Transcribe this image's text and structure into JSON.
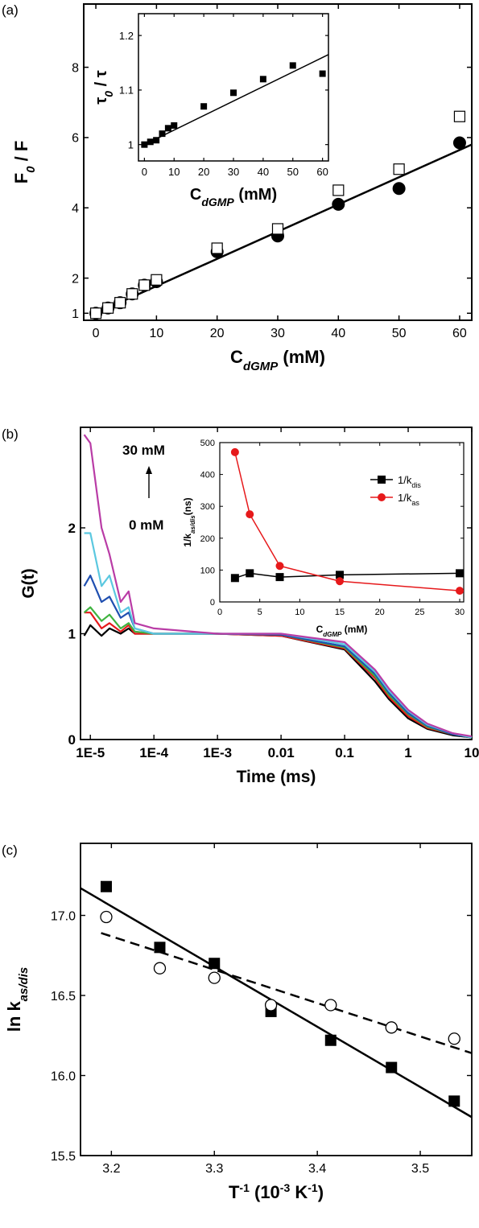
{
  "panels": {
    "a": {
      "label": "(a)"
    },
    "b": {
      "label": "(b)"
    },
    "c": {
      "label": "(c)"
    }
  },
  "chart_data": [
    {
      "id": "a-main",
      "type": "scatter",
      "ylabel": {
        "base": "F",
        "sub": "0",
        "rest": " / F"
      },
      "xlabel": {
        "base": "C",
        "sub": "dGMP",
        "rest": " (mM)"
      },
      "xlim": [
        -2,
        62
      ],
      "ylim": [
        0.8,
        9.8
      ],
      "xticks": [
        0,
        10,
        20,
        30,
        40,
        50,
        60
      ],
      "yticks": [
        1,
        2,
        4,
        6,
        8
      ],
      "series": [
        {
          "marker": "filled-circle",
          "x": [
            0,
            2,
            4,
            6,
            8,
            10,
            20,
            30,
            40,
            50,
            60
          ],
          "y": [
            1.0,
            1.15,
            1.3,
            1.55,
            1.8,
            1.9,
            2.75,
            3.2,
            4.1,
            4.55,
            5.85
          ]
        },
        {
          "marker": "open-square",
          "x": [
            0,
            2,
            4,
            6,
            8,
            10,
            20,
            30,
            40,
            50,
            60
          ],
          "y": [
            1.0,
            1.15,
            1.3,
            1.55,
            1.8,
            1.95,
            2.85,
            3.4,
            4.5,
            5.1,
            6.6
          ]
        },
        {
          "marker": "line",
          "x": [
            0,
            62
          ],
          "y": [
            1.0,
            5.8
          ]
        }
      ],
      "inset": {
        "id": "a-inset",
        "type": "scatter",
        "ylabel": {
          "base": "τ",
          "sub": "0",
          "rest": " / τ"
        },
        "xlabel": {
          "base": "C",
          "sub": "dGMP",
          "rest": " (mM)"
        },
        "xlim": [
          -2,
          62
        ],
        "ylim": [
          0.97,
          1.24
        ],
        "xticks": [
          0,
          10,
          20,
          30,
          40,
          50,
          60
        ],
        "yticks": [
          1,
          1.1,
          1.2
        ],
        "ytick_labels": [
          "1",
          "1.1",
          "1.2"
        ],
        "series": [
          {
            "marker": "filled-square",
            "x": [
              0,
              2,
              4,
              6,
              8,
              10,
              20,
              30,
              40,
              50,
              60
            ],
            "y": [
              1.0,
              1.005,
              1.008,
              1.02,
              1.03,
              1.035,
              1.07,
              1.095,
              1.12,
              1.145,
              1.13
            ]
          },
          {
            "marker": "line",
            "x": [
              0,
              62
            ],
            "y": [
              1.0,
              1.165
            ]
          }
        ]
      }
    },
    {
      "id": "b-main",
      "type": "line",
      "ylabel": "G(t)",
      "xlabel": "Time (ms)",
      "xscale": "log",
      "xlim": [
        7e-06,
        10
      ],
      "ylim": [
        0,
        2.95
      ],
      "xticks": [
        1e-05,
        0.0001,
        0.001,
        0.01,
        0.1,
        1,
        10
      ],
      "xtick_labels": [
        "1E-5",
        "1E-4",
        "1E-3",
        "0.01",
        "0.1",
        "1",
        "10"
      ],
      "yticks": [
        0,
        1,
        2
      ],
      "annotations": [
        "30 mM",
        "0 mM"
      ],
      "series": [
        {
          "color": "#000000",
          "x": [
            8e-06,
            1e-05,
            1.5e-05,
            2e-05,
            3e-05,
            4e-05,
            5e-05,
            0.0001,
            0.001,
            0.01,
            0.1,
            0.3,
            0.5,
            1,
            2,
            5,
            10
          ],
          "y": [
            0.98,
            1.08,
            0.98,
            1.05,
            1.0,
            1.05,
            1.0,
            1.0,
            1.0,
            0.98,
            0.85,
            0.55,
            0.38,
            0.2,
            0.1,
            0.04,
            0.02
          ]
        },
        {
          "color": "#e6191b",
          "x": [
            8e-06,
            1e-05,
            1.5e-05,
            2e-05,
            3e-05,
            4e-05,
            5e-05,
            0.0001,
            0.001,
            0.01,
            0.1,
            0.3,
            0.5,
            1,
            2,
            5,
            10
          ],
          "y": [
            1.2,
            1.2,
            1.05,
            1.1,
            1.02,
            1.08,
            1.0,
            1.0,
            1.0,
            0.98,
            0.86,
            0.58,
            0.4,
            0.22,
            0.11,
            0.05,
            0.02
          ]
        },
        {
          "color": "#3fb340",
          "x": [
            8e-06,
            1e-05,
            1.5e-05,
            2e-05,
            3e-05,
            4e-05,
            5e-05,
            0.0001,
            0.001,
            0.01,
            0.1,
            0.3,
            0.5,
            1,
            2,
            5,
            10
          ],
          "y": [
            1.2,
            1.25,
            1.12,
            1.18,
            1.05,
            1.1,
            1.02,
            1.0,
            1.0,
            0.99,
            0.87,
            0.6,
            0.42,
            0.24,
            0.12,
            0.05,
            0.02
          ]
        },
        {
          "color": "#1f4fb0",
          "x": [
            8e-06,
            1e-05,
            1.5e-05,
            2e-05,
            3e-05,
            4e-05,
            5e-05,
            0.0001,
            0.001,
            0.01,
            0.1,
            0.3,
            0.5,
            1,
            2,
            5,
            10
          ],
          "y": [
            1.45,
            1.55,
            1.3,
            1.35,
            1.15,
            1.2,
            1.05,
            1.0,
            1.0,
            0.99,
            0.88,
            0.62,
            0.44,
            0.25,
            0.13,
            0.05,
            0.02
          ]
        },
        {
          "color": "#5bc8e0",
          "x": [
            8e-06,
            1e-05,
            1.5e-05,
            2e-05,
            3e-05,
            4e-05,
            5e-05,
            0.0001,
            0.001,
            0.01,
            0.1,
            0.3,
            0.5,
            1,
            2,
            5,
            10
          ],
          "y": [
            1.95,
            1.95,
            1.45,
            1.55,
            1.2,
            1.25,
            1.05,
            1.0,
            1.0,
            1.0,
            0.9,
            0.64,
            0.46,
            0.27,
            0.14,
            0.06,
            0.02
          ]
        },
        {
          "color": "#b93ca6",
          "x": [
            8e-06,
            1e-05,
            1.5e-05,
            2e-05,
            3e-05,
            4e-05,
            5e-05,
            0.0001,
            0.001,
            0.01,
            0.1,
            0.3,
            0.5,
            1,
            2,
            5,
            10
          ],
          "y": [
            2.88,
            2.8,
            2.0,
            1.75,
            1.3,
            1.4,
            1.1,
            1.05,
            1.0,
            1.0,
            0.92,
            0.66,
            0.48,
            0.28,
            0.15,
            0.06,
            0.03
          ]
        }
      ],
      "inset": {
        "id": "b-inset",
        "type": "line",
        "ylabel": {
          "base": "1/k",
          "sub": "as/dis",
          "rest": "(ns)"
        },
        "xlabel": {
          "base": "C",
          "sub": "dGMP",
          "rest": " (mM)"
        },
        "xlim": [
          0,
          30.5
        ],
        "ylim": [
          0,
          500
        ],
        "xticks": [
          0,
          5,
          10,
          15,
          20,
          25,
          30
        ],
        "yticks": [
          0,
          100,
          200,
          300,
          400,
          500
        ],
        "legend_position": "top-right",
        "series": [
          {
            "name": "1/k",
            "name_sub": "dis",
            "color": "#000000",
            "marker": "square",
            "x": [
              1.9,
              3.75,
              7.5,
              15,
              30
            ],
            "y": [
              75,
              90,
              78,
              85,
              90
            ]
          },
          {
            "name": "1/k",
            "name_sub": "as",
            "color": "#e6191b",
            "marker": "circle",
            "x": [
              1.9,
              3.75,
              7.5,
              15,
              30
            ],
            "y": [
              470,
              275,
              113,
              65,
              35
            ]
          }
        ]
      }
    },
    {
      "id": "c-main",
      "type": "scatter",
      "ylabel": {
        "base": "ln k",
        "sub": "as/dis",
        "rest": ""
      },
      "xlabel": {
        "base": "T",
        "sup": "-1",
        "rest": " (10",
        "sup2": "-3",
        "rest2": " K",
        "sup3": "-1",
        "rest3": ")"
      },
      "xlim": [
        3.17,
        3.55
      ],
      "ylim": [
        15.5,
        17.45
      ],
      "xticks": [
        3.2,
        3.3,
        3.4,
        3.5
      ],
      "xtick_labels": [
        "3.2",
        "3.3",
        "3.4",
        "3.5"
      ],
      "yticks": [
        15.5,
        16.0,
        16.5,
        17.0
      ],
      "ytick_labels": [
        "15.5",
        "16.0",
        "16.5",
        "17.0"
      ],
      "series": [
        {
          "marker": "filled-square",
          "x": [
            3.195,
            3.247,
            3.3,
            3.355,
            3.413,
            3.472,
            3.533
          ],
          "y": [
            17.18,
            16.8,
            16.7,
            16.4,
            16.22,
            16.05,
            15.84
          ]
        },
        {
          "marker": "open-circle",
          "x": [
            3.195,
            3.247,
            3.3,
            3.355,
            3.413,
            3.472,
            3.533
          ],
          "y": [
            16.99,
            16.67,
            16.61,
            16.44,
            16.44,
            16.3,
            16.23
          ]
        },
        {
          "marker": "line",
          "style": "solid",
          "x": [
            3.17,
            3.55
          ],
          "y": [
            17.17,
            15.74
          ]
        },
        {
          "marker": "line",
          "style": "dashed",
          "x": [
            3.19,
            3.55
          ],
          "y": [
            16.89,
            16.14
          ]
        }
      ]
    }
  ]
}
